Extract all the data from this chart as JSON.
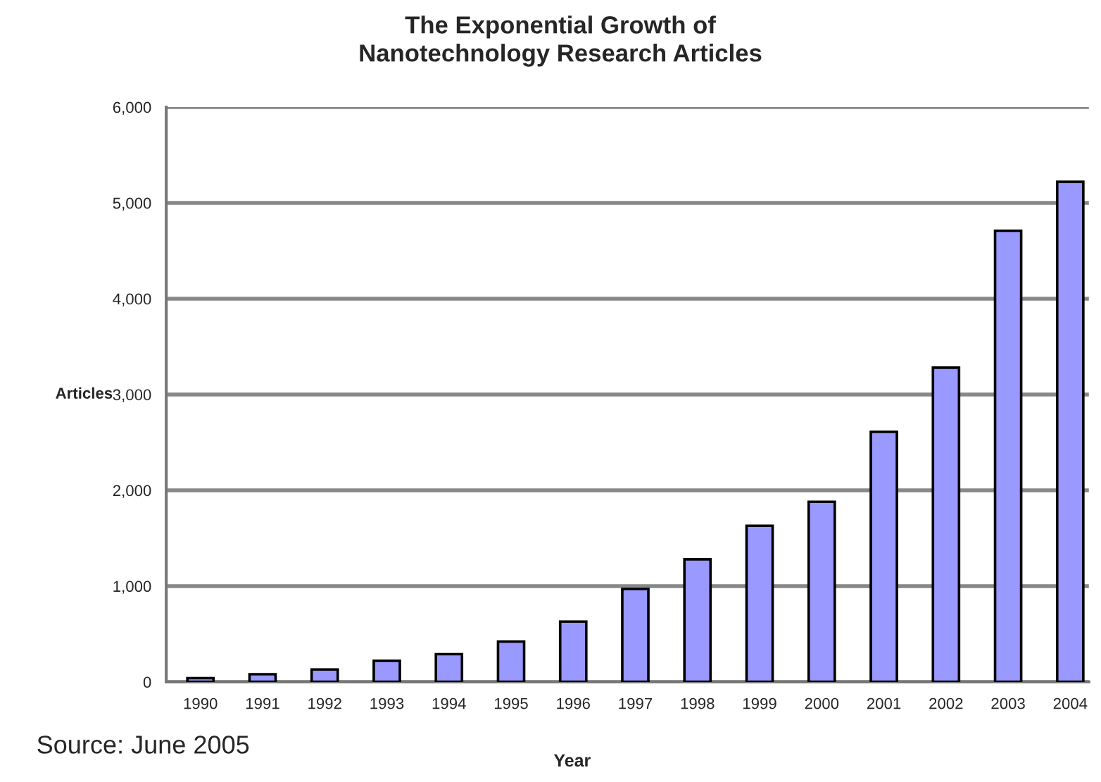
{
  "chart_data": {
    "type": "bar",
    "title": "The Exponential Growth of\nNanotechnology Research Articles",
    "xlabel": "Year",
    "ylabel": "Articles",
    "annotations": [
      "Source: June 2005"
    ],
    "categories": [
      "1990",
      "1991",
      "1992",
      "1993",
      "1994",
      "1995",
      "1996",
      "1997",
      "1998",
      "1999",
      "2000",
      "2001",
      "2002",
      "2003",
      "2004"
    ],
    "values": [
      40,
      80,
      130,
      220,
      290,
      420,
      630,
      970,
      1280,
      1630,
      1880,
      2610,
      3280,
      4710,
      5220
    ],
    "color": "#9999ff",
    "ylim": [
      0,
      6000
    ],
    "yticks": [
      0,
      {
        "value": 1000,
        "label": "1,000"
      },
      {
        "value": 2000,
        "label": "2,000"
      },
      {
        "value": 3000,
        "label": "3,000"
      },
      {
        "value": 4000,
        "label": "4,000"
      },
      {
        "value": 5000,
        "label": "5,000"
      },
      {
        "value": 6000,
        "label": "6,000"
      }
    ],
    "grid": "y"
  }
}
